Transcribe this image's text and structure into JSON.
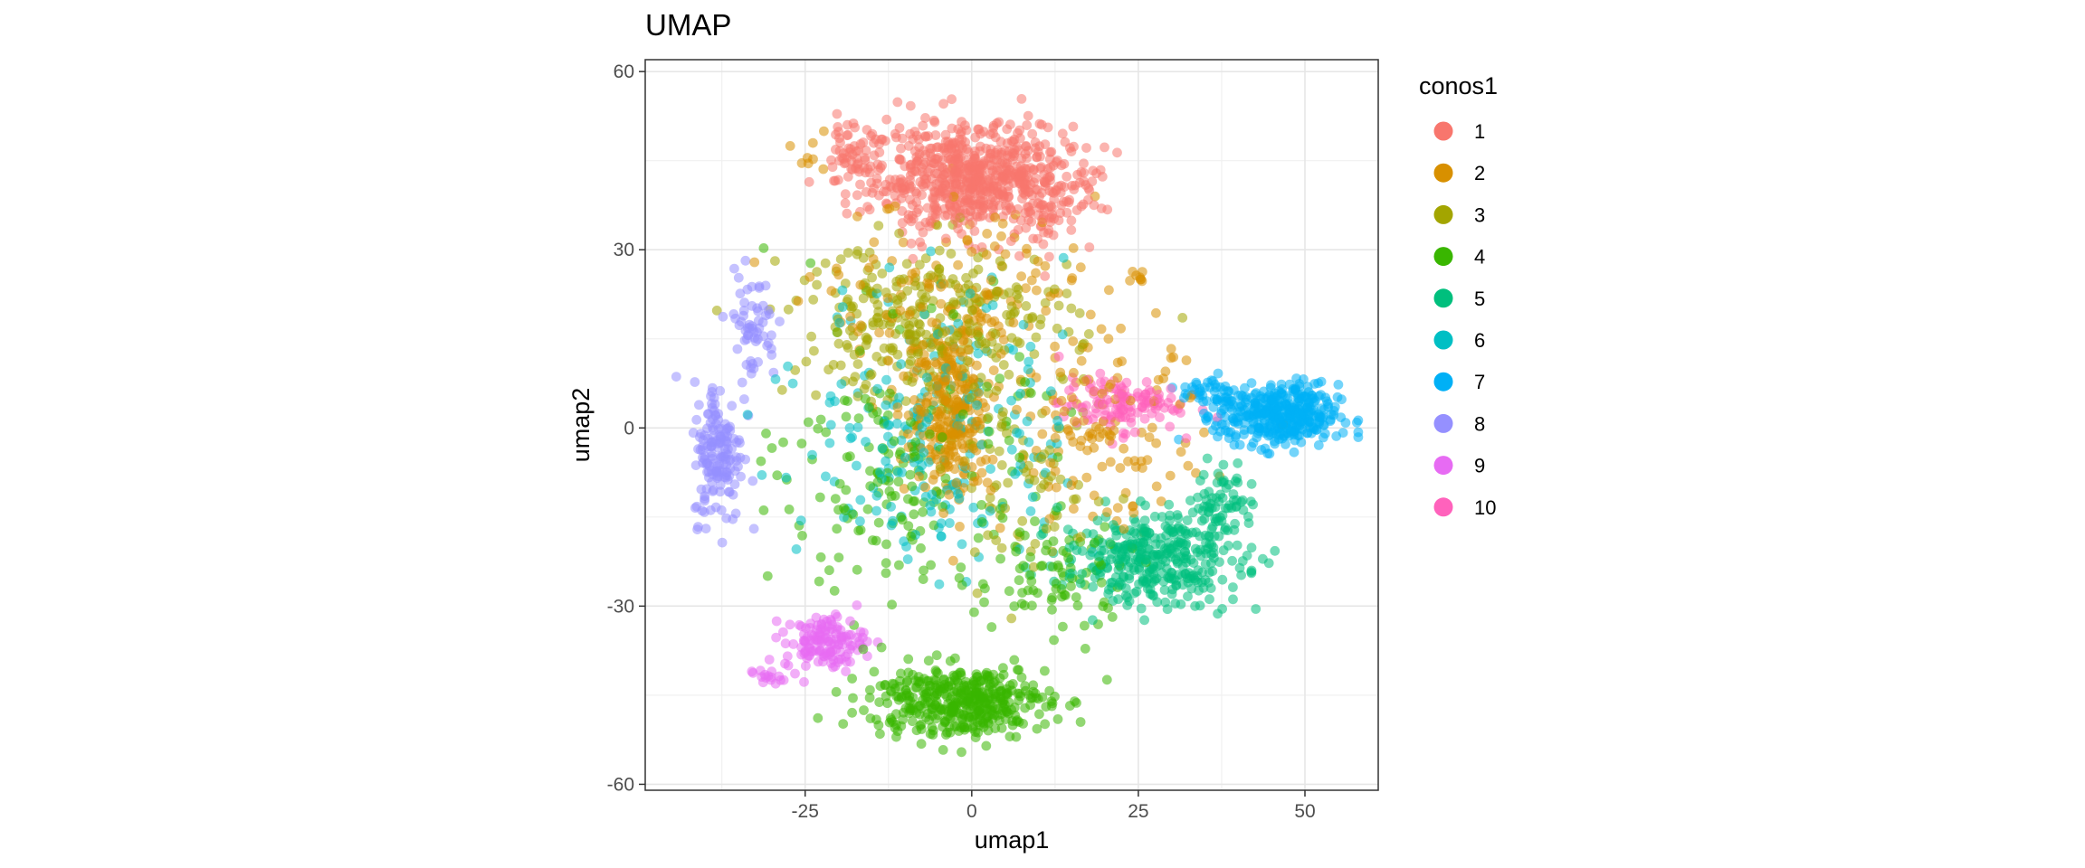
{
  "chart_data": {
    "type": "scatter",
    "title": "UMAP",
    "xlabel": "umap1",
    "ylabel": "umap2",
    "xlim": [
      -49,
      61
    ],
    "ylim": [
      -61,
      62
    ],
    "xticks": [
      -25,
      0,
      25,
      50
    ],
    "yticks": [
      -60,
      -30,
      0,
      30,
      60
    ],
    "xtick_labels": [
      "-25",
      "0",
      "25",
      "50"
    ],
    "ytick_labels": [
      "-60",
      "-30",
      "0",
      "30",
      "60"
    ],
    "grid": true,
    "theme": "bw",
    "point_opacity": 0.55,
    "legend": {
      "title": "conos1",
      "placement": "right"
    },
    "series": [
      {
        "name": "1",
        "color": "#F8766D",
        "clusters": [
          {
            "x": 0,
            "y": 42,
            "sx": 10,
            "sy": 6,
            "n": 650
          },
          {
            "x": -18,
            "y": 45,
            "sx": 3,
            "sy": 4,
            "n": 60
          },
          {
            "x": 12,
            "y": 38,
            "sx": 4,
            "sy": 5,
            "n": 60
          }
        ]
      },
      {
        "name": "2",
        "color": "#D89000",
        "clusters": [
          {
            "x": -3,
            "y": 3,
            "sx": 4,
            "sy": 10,
            "n": 260
          },
          {
            "x": -1,
            "y": 20,
            "sx": 14,
            "sy": 12,
            "n": 160
          },
          {
            "x": 20,
            "y": -2,
            "sx": 10,
            "sy": 10,
            "n": 120
          },
          {
            "x": 25,
            "y": 25,
            "sx": 1,
            "sy": 1,
            "n": 8
          },
          {
            "x": -24,
            "y": 45,
            "sx": 2,
            "sy": 2,
            "n": 8
          }
        ]
      },
      {
        "name": "3",
        "color": "#A3A500",
        "clusters": [
          {
            "x": -6,
            "y": 18,
            "sx": 14,
            "sy": 9,
            "n": 300
          },
          {
            "x": 8,
            "y": -10,
            "sx": 8,
            "sy": 10,
            "n": 80
          }
        ]
      },
      {
        "name": "4",
        "color": "#39B600",
        "clusters": [
          {
            "x": -2,
            "y": -46,
            "sx": 9,
            "sy": 4,
            "n": 420
          },
          {
            "x": -10,
            "y": -8,
            "sx": 12,
            "sy": 16,
            "n": 180
          },
          {
            "x": 12,
            "y": -25,
            "sx": 8,
            "sy": 7,
            "n": 80
          }
        ]
      },
      {
        "name": "5",
        "color": "#00BF7D",
        "clusters": [
          {
            "x": 27,
            "y": -22,
            "sx": 9,
            "sy": 5,
            "n": 360
          },
          {
            "x": 38,
            "y": -12,
            "sx": 3,
            "sy": 4,
            "n": 60
          }
        ]
      },
      {
        "name": "6",
        "color": "#00BFC4",
        "clusters": [
          {
            "x": -5,
            "y": 0,
            "sx": 13,
            "sy": 16,
            "n": 220
          }
        ]
      },
      {
        "name": "7",
        "color": "#00B0F6",
        "clusters": [
          {
            "x": 46,
            "y": 2,
            "sx": 6,
            "sy": 3.5,
            "n": 380
          },
          {
            "x": 36,
            "y": 6,
            "sx": 3,
            "sy": 2,
            "n": 40
          }
        ]
      },
      {
        "name": "8",
        "color": "#9590FF",
        "clusters": [
          {
            "x": -38,
            "y": -4,
            "sx": 2.5,
            "sy": 8,
            "n": 160
          },
          {
            "x": -33,
            "y": 17,
            "sx": 2.5,
            "sy": 6,
            "n": 60
          }
        ]
      },
      {
        "name": "9",
        "color": "#E76BF3",
        "clusters": [
          {
            "x": -22,
            "y": -36,
            "sx": 4,
            "sy": 3,
            "n": 140
          },
          {
            "x": -31,
            "y": -42,
            "sx": 1.5,
            "sy": 1,
            "n": 15
          }
        ]
      },
      {
        "name": "10",
        "color": "#FF62BC",
        "clusters": [
          {
            "x": 22,
            "y": 4,
            "sx": 6,
            "sy": 3,
            "n": 120
          }
        ]
      }
    ]
  }
}
